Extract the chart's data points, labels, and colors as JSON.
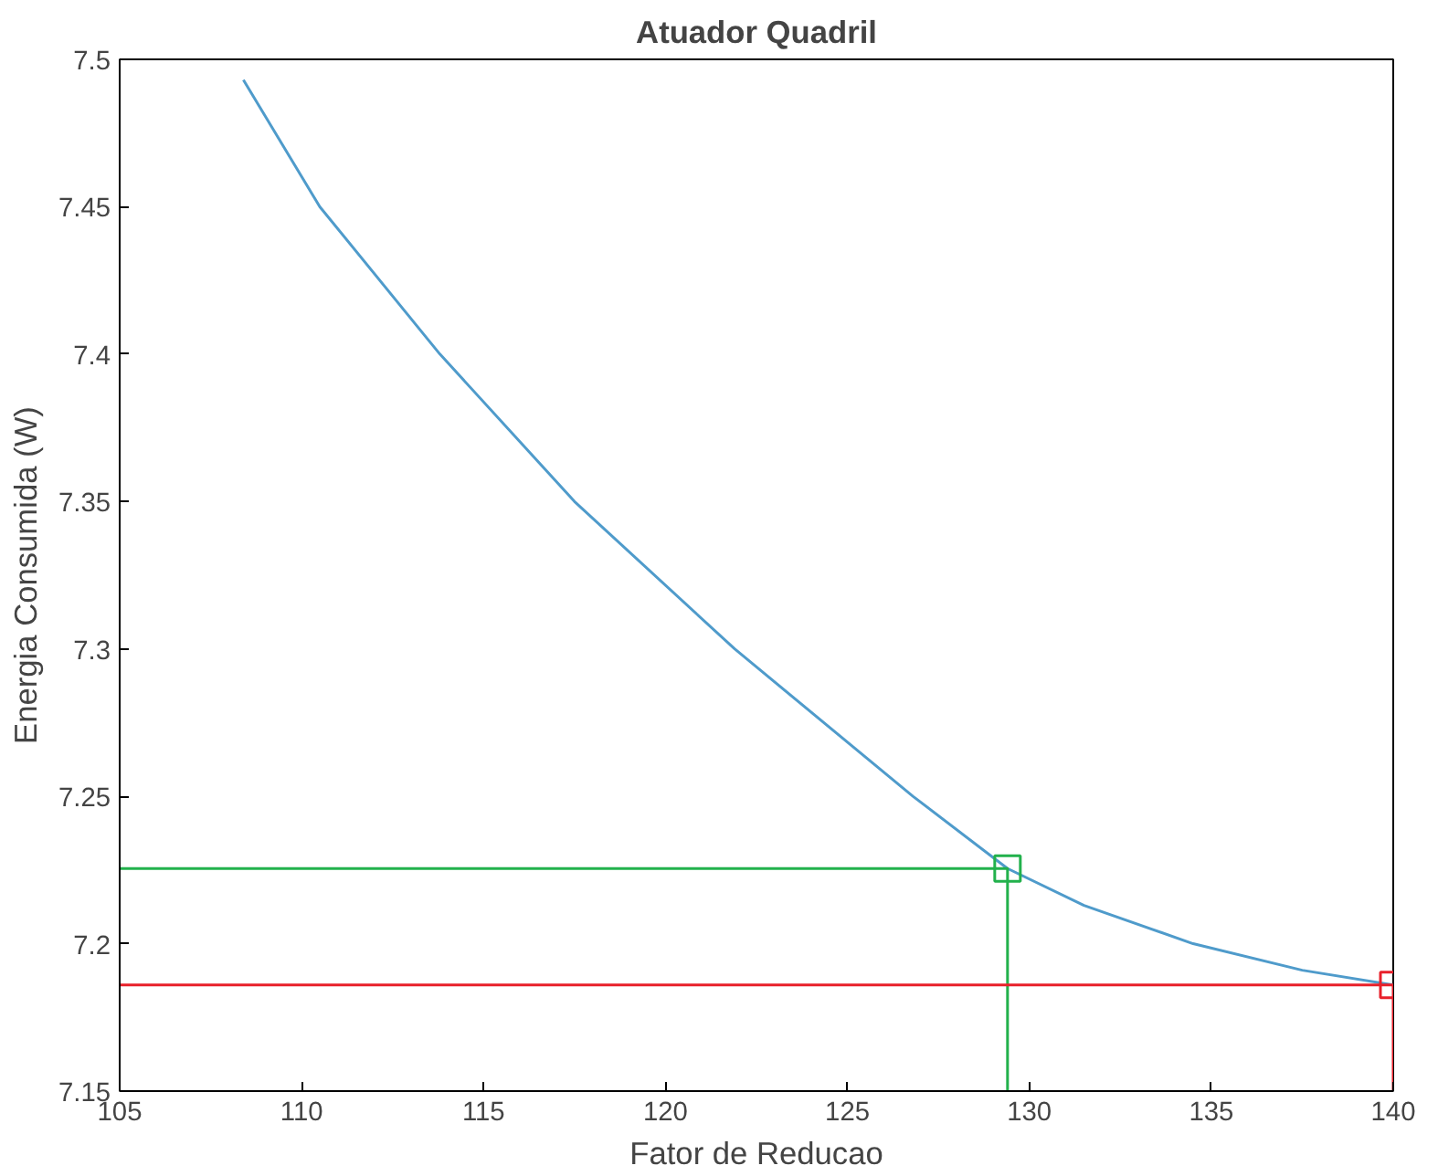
{
  "chart_data": {
    "type": "line",
    "title": "Atuador Quadril",
    "xlabel": "Fator de Reducao",
    "ylabel": "Energia Consumida (W)",
    "xlim": [
      105,
      140
    ],
    "xticks": [
      105,
      110,
      115,
      120,
      125,
      130,
      135,
      140
    ],
    "ylim": [
      7.15,
      7.5
    ],
    "yticks": [
      7.15,
      7.2,
      7.25,
      7.3,
      7.35,
      7.4,
      7.45,
      7.5
    ],
    "grid": false,
    "series": [
      {
        "color": "#4f9bcb",
        "x": [
          108.4,
          110.5,
          113.8,
          117.5,
          121.9,
          126.8,
          129.4,
          131.5,
          134.5,
          137.5,
          140
        ],
        "values": [
          7.493,
          7.45,
          7.4,
          7.35,
          7.3,
          7.25,
          7.2255,
          7.213,
          7.2,
          7.191,
          7.186
        ]
      },
      {
        "type": "line",
        "color": "#22b14c",
        "x": [
          105,
          129.4,
          129.4
        ],
        "values": [
          7.2255,
          7.2255,
          7.15
        ]
      },
      {
        "type": "line",
        "color": "#e8202a",
        "x": [
          105,
          140,
          140
        ],
        "values": [
          7.186,
          7.186,
          7.15
        ]
      },
      {
        "type": "scatter",
        "marker": "square",
        "color": "#22b14c",
        "x": [
          129.4
        ],
        "values": [
          7.2255
        ]
      },
      {
        "type": "scatter",
        "marker": "square",
        "color": "#e8202a",
        "x": [
          140
        ],
        "values": [
          7.186
        ]
      }
    ]
  }
}
